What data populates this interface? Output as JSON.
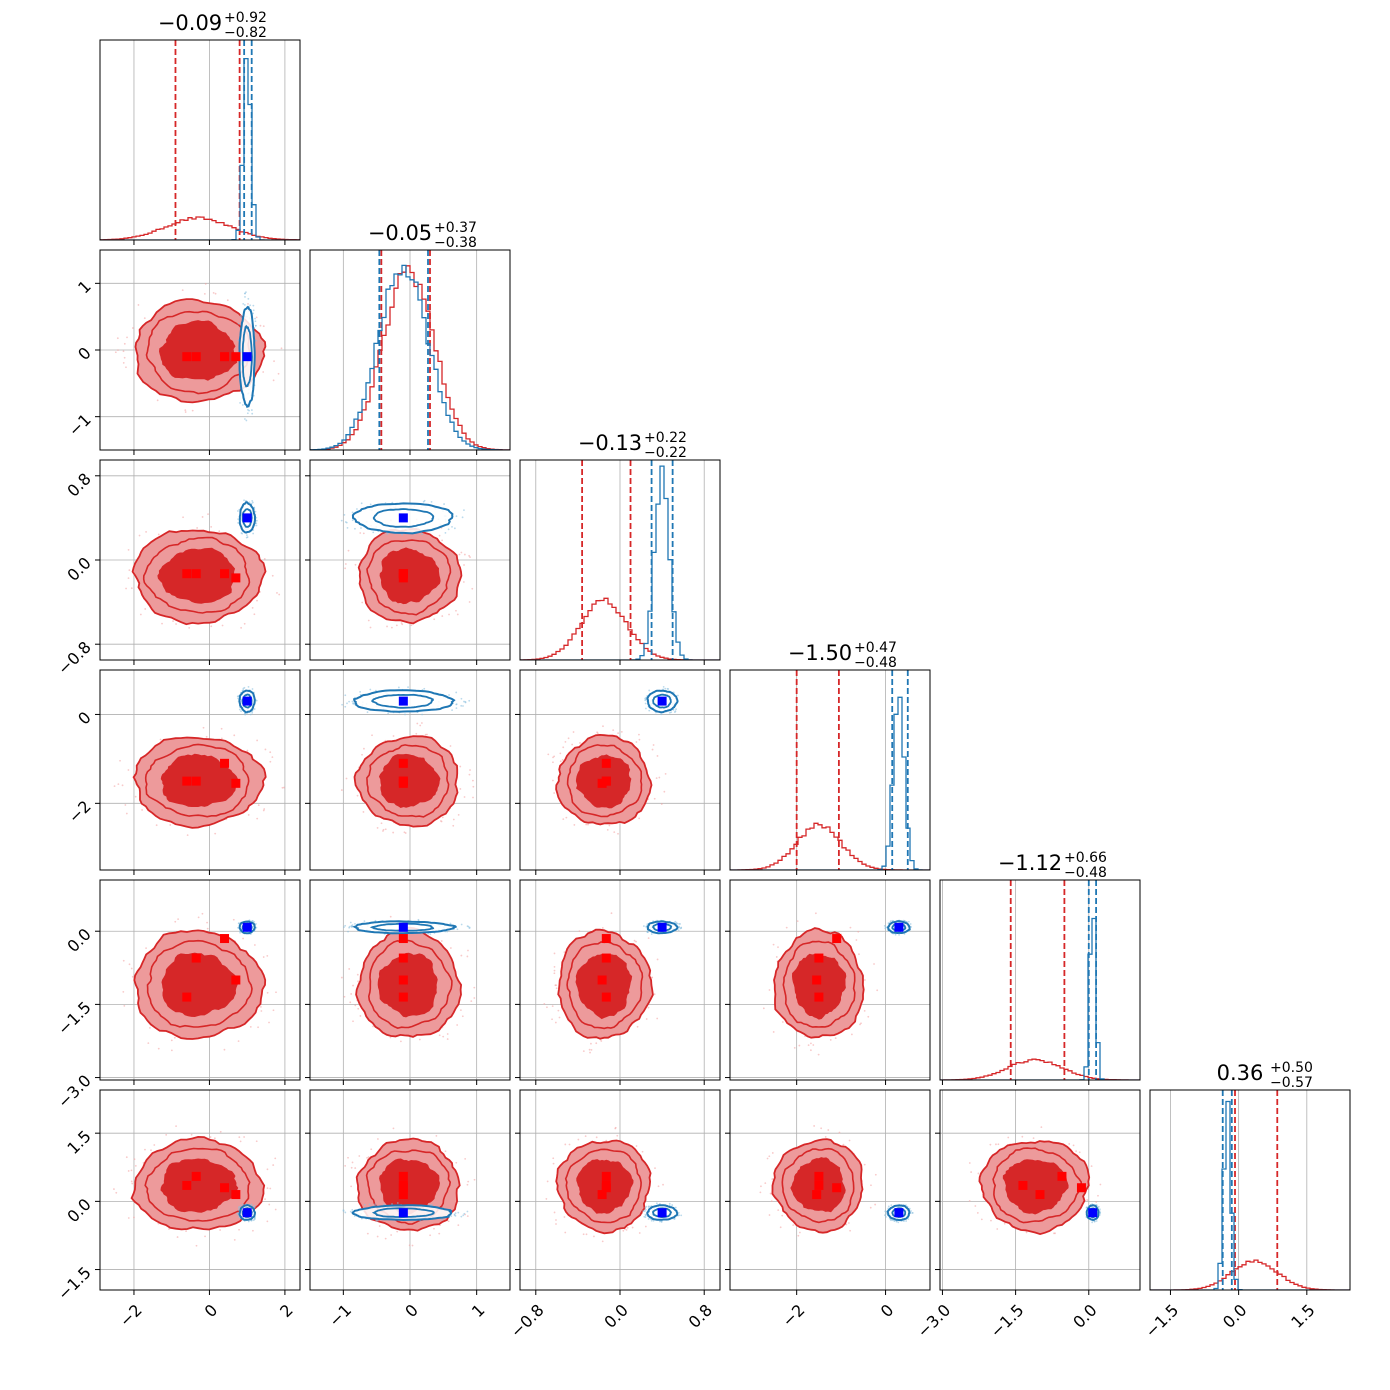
{
  "chart_data": {
    "type": "corner",
    "parameter_count": 6,
    "grid": true,
    "colors": {
      "red_line": "#d62728",
      "red_fill_outer": "#ed9a9b",
      "red_fill_inner": "#d62728",
      "blue_line": "#1f77b4",
      "red_marker": "#ff0000",
      "blue_marker": "#0000ff"
    },
    "titles": [
      {
        "value": "−0.09",
        "plus": "+0.92",
        "minus": "−0.82"
      },
      {
        "value": "−0.05",
        "plus": "+0.37",
        "minus": "−0.38"
      },
      {
        "value": "−0.13",
        "plus": "+0.22",
        "minus": "−0.22"
      },
      {
        "value": "−1.50",
        "plus": "+0.47",
        "minus": "−0.48"
      },
      {
        "value": "−1.12",
        "plus": "+0.66",
        "minus": "−0.48"
      },
      {
        "value": "0.36",
        "plus": "+0.50",
        "minus": "−0.57"
      }
    ],
    "axes": [
      {
        "range": [
          -2.9,
          2.4
        ],
        "ticks": [
          -2,
          0,
          2
        ],
        "tick_labels": [
          "−2",
          "0",
          "2"
        ]
      },
      {
        "range": [
          -1.5,
          1.5
        ],
        "ticks": [
          -1,
          0,
          1
        ],
        "tick_labels": [
          "−1",
          "0",
          "1"
        ]
      },
      {
        "range": [
          -0.95,
          0.95
        ],
        "ticks": [
          -0.8,
          0.0,
          0.8
        ],
        "tick_labels": [
          "−0.8",
          "0.0",
          "0.8"
        ]
      },
      {
        "range": [
          -3.5,
          1.0
        ],
        "ticks": [
          -2,
          0
        ],
        "tick_labels": [
          "−2",
          "0"
        ]
      },
      {
        "range": [
          -3.05,
          1.05
        ],
        "ticks": [
          -3.0,
          -1.5,
          0.0
        ],
        "tick_labels": [
          "−3.0",
          "−1.5",
          "0.0"
        ]
      },
      {
        "range": [
          -1.95,
          2.45
        ],
        "ticks": [
          -1.5,
          0.0,
          1.5
        ],
        "tick_labels": [
          "−1.5",
          "0.0",
          "1.5"
        ]
      }
    ],
    "series": [
      {
        "name": "",
        "color": "#d62728",
        "center": [
          -0.3,
          -0.02,
          -0.15,
          -1.5,
          -1.1,
          0.35
        ],
        "sigma": [
          0.85,
          0.38,
          0.22,
          0.5,
          0.55,
          0.5
        ],
        "quantiles": [
          [
            -0.9,
            0.8
          ],
          [
            -0.43,
            0.3
          ],
          [
            -0.36,
            0.1
          ],
          [
            -2.0,
            -1.05
          ],
          [
            -1.6,
            -0.5
          ],
          [
            -0.08,
            0.85
          ]
        ],
        "markers": [
          [
            -0.6,
            -0.1,
            -0.13,
            -1.5,
            -1.35,
            0.35
          ],
          [
            -0.35,
            -0.1,
            -0.13,
            -1.5,
            -0.55,
            0.55
          ],
          [
            0.4,
            -0.1,
            -0.13,
            -1.1,
            -0.15,
            0.3
          ],
          [
            0.7,
            -0.1,
            -0.17,
            -1.55,
            -1.0,
            0.15
          ]
        ]
      },
      {
        "name": "",
        "color": "#1f77b4",
        "center": [
          1.0,
          -0.1,
          0.4,
          0.3,
          0.08,
          -0.25
        ],
        "sigma": [
          0.1,
          0.37,
          0.07,
          0.12,
          0.06,
          0.08
        ],
        "quantiles": [
          [
            0.92,
            1.12
          ],
          [
            -0.46,
            0.27
          ],
          [
            0.3,
            0.5
          ],
          [
            0.15,
            0.5
          ],
          [
            0.0,
            0.15
          ],
          [
            -0.35,
            -0.15
          ]
        ],
        "markers": [
          [
            1.0,
            -0.1,
            0.4,
            0.3,
            0.08,
            -0.25
          ]
        ]
      }
    ]
  }
}
